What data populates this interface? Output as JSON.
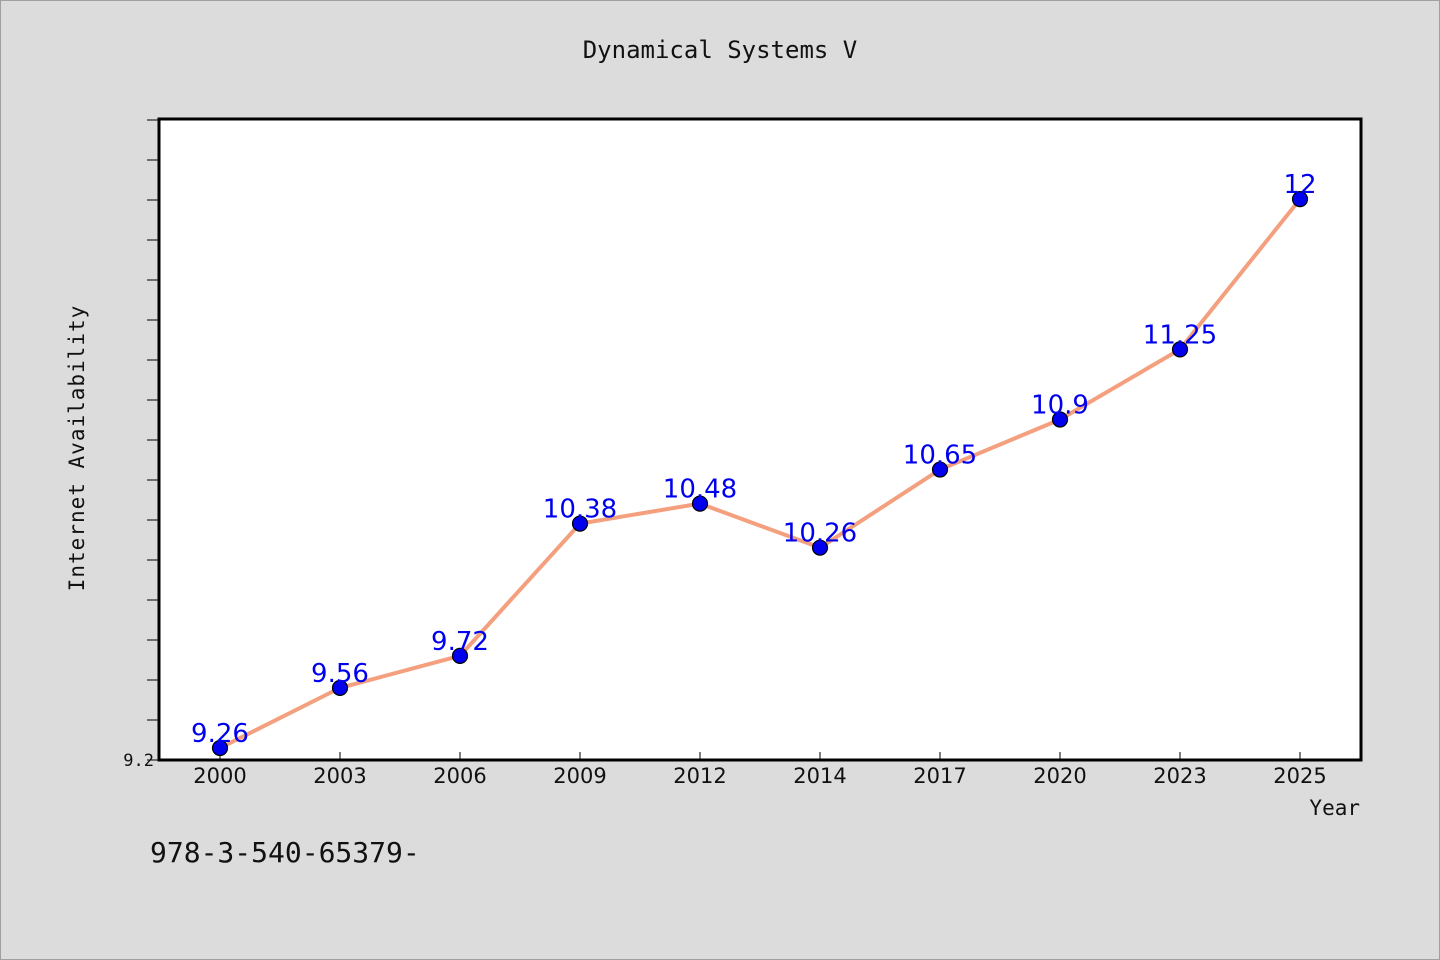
{
  "chart_data": {
    "type": "line",
    "title": "Dynamical Systems V",
    "xlabel": "Year",
    "ylabel": "Internet Availability",
    "categories": [
      "2000",
      "2003",
      "2006",
      "2009",
      "2012",
      "2014",
      "2017",
      "2020",
      "2023",
      "2025"
    ],
    "series": [
      {
        "values": [
          9.26,
          9.56,
          9.72,
          10.38,
          10.48,
          10.26,
          10.65,
          10.9,
          11.25,
          12
        ]
      }
    ],
    "data_labels": [
      "9.26",
      "9.56",
      "9.72",
      "10.38",
      "10.48",
      "10.26",
      "10.65",
      "10.9",
      "11.25",
      "12"
    ],
    "ytick_label": "9.2",
    "ylim": [
      9.2,
      12.4
    ],
    "grid": false,
    "line_color": "#f4a07e",
    "marker_color": "#0000ee",
    "label_color": "#0000ee"
  },
  "footer": {
    "text": "978-3-540-65379-"
  }
}
